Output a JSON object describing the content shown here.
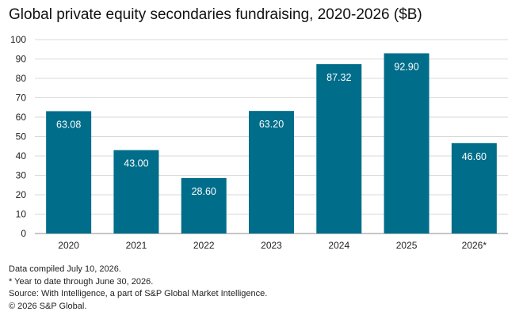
{
  "chart_data": {
    "type": "bar",
    "title": "Global private equity secondaries fundraising, 2020-2026 ($B)",
    "categories": [
      "2020",
      "2021",
      "2022",
      "2023",
      "2024",
      "2025",
      "2026*"
    ],
    "values": [
      63.08,
      43.0,
      28.6,
      63.2,
      87.32,
      92.9,
      46.6
    ],
    "data_labels": [
      "63.08",
      "43.00",
      "28.60",
      "63.20",
      "87.32",
      "92.90",
      "46.60"
    ],
    "y_ticks": [
      "0",
      "10",
      "20",
      "30",
      "40",
      "50",
      "60",
      "70",
      "80",
      "90",
      "100"
    ],
    "ylim": [
      0,
      100
    ],
    "xlabel": "",
    "ylabel": "",
    "grid": true,
    "bar_color": "#006d8a",
    "grid_color": "#d9d9d9",
    "label_color": "#ffffff"
  },
  "notes": [
    "Data compiled July 10, 2026.",
    "* Year to date through June 30, 2026.",
    "Source: With Intelligence, a part of S&P Global Market Intelligence.",
    "© 2026 S&P Global."
  ]
}
